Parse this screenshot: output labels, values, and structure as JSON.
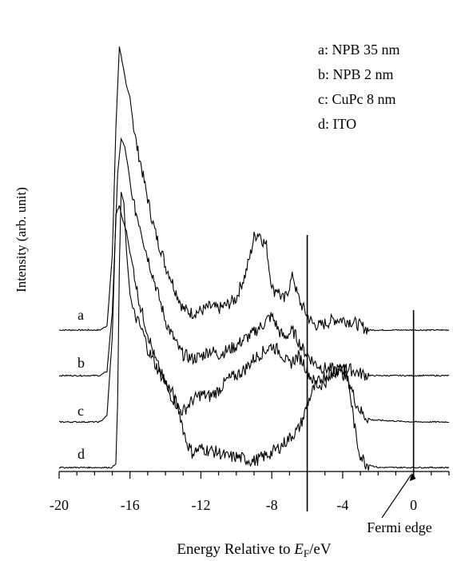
{
  "chart_data": {
    "type": "line",
    "xlabel_prefix": "Energy Relative to ",
    "xlabel_var": "E",
    "xlabel_sub": "F",
    "xlabel_suffix": "/eV",
    "ylabel": "Intensity (arb. unit)",
    "xlim": [
      -20,
      2
    ],
    "x_ticks": [
      -20,
      -16,
      -12,
      -8,
      -4,
      0
    ],
    "x_tick_labels": [
      "-20",
      "-16",
      "-12",
      "-8",
      "-4",
      "0"
    ],
    "grid": false,
    "legend_position": "top-right",
    "legend": [
      "a: NPB 35 nm",
      "b: NPB 2 nm",
      "c: CuPc 8 nm",
      "d: ITO"
    ],
    "annotations": [
      {
        "text": "Fermi edge",
        "x": 0
      }
    ],
    "vertical_lines": [
      -6,
      0
    ],
    "series": [
      {
        "name": "a",
        "points": [
          [
            -20,
            0.0
          ],
          [
            -17.7,
            0.0
          ],
          [
            -17.3,
            0.02
          ],
          [
            -17.0,
            0.35
          ],
          [
            -16.8,
            0.95
          ],
          [
            -16.6,
            1.34
          ],
          [
            -16.4,
            1.25
          ],
          [
            -16.2,
            1.15
          ],
          [
            -16.0,
            1.1
          ],
          [
            -15.8,
            0.96
          ],
          [
            -15.6,
            0.86
          ],
          [
            -15.4,
            0.79
          ],
          [
            -15.2,
            0.7
          ],
          [
            -15.0,
            0.62
          ],
          [
            -14.8,
            0.54
          ],
          [
            -14.6,
            0.47
          ],
          [
            -14.4,
            0.41
          ],
          [
            -14.2,
            0.37
          ],
          [
            -14.0,
            0.3
          ],
          [
            -13.8,
            0.27
          ],
          [
            -13.5,
            0.2
          ],
          [
            -13.2,
            0.14
          ],
          [
            -13.0,
            0.1
          ],
          [
            -12.5,
            0.08
          ],
          [
            -12.0,
            0.09
          ],
          [
            -11.5,
            0.11
          ],
          [
            -11.0,
            0.1
          ],
          [
            -10.5,
            0.12
          ],
          [
            -10.0,
            0.15
          ],
          [
            -9.8,
            0.2
          ],
          [
            -9.5,
            0.26
          ],
          [
            -9.2,
            0.36
          ],
          [
            -9.0,
            0.44
          ],
          [
            -8.7,
            0.46
          ],
          [
            -8.5,
            0.42
          ],
          [
            -8.3,
            0.4
          ],
          [
            -8.1,
            0.26
          ],
          [
            -7.9,
            0.18
          ],
          [
            -7.7,
            0.2
          ],
          [
            -7.5,
            0.16
          ],
          [
            -7.3,
            0.14
          ],
          [
            -7.0,
            0.21
          ],
          [
            -6.8,
            0.26
          ],
          [
            -6.6,
            0.18
          ],
          [
            -6.4,
            0.13
          ],
          [
            -6.2,
            0.1
          ],
          [
            -6.0,
            0.07
          ],
          [
            -5.7,
            0.03
          ],
          [
            -5.3,
            0.02
          ],
          [
            -5.0,
            0.03
          ],
          [
            -4.5,
            0.05
          ],
          [
            -4.0,
            0.05
          ],
          [
            -3.5,
            0.04
          ],
          [
            -3.0,
            0.02
          ],
          [
            -2.5,
            0.0
          ],
          [
            0,
            0.0
          ],
          [
            2,
            0.0
          ]
        ]
      },
      {
        "name": "b",
        "points": [
          [
            -20,
            0.0
          ],
          [
            -17.7,
            0.0
          ],
          [
            -17.3,
            0.02
          ],
          [
            -17.0,
            0.3
          ],
          [
            -16.7,
            0.95
          ],
          [
            -16.5,
            1.12
          ],
          [
            -16.3,
            1.08
          ],
          [
            -16.1,
            0.98
          ],
          [
            -15.9,
            0.85
          ],
          [
            -15.7,
            0.78
          ],
          [
            -15.4,
            0.7
          ],
          [
            -15.2,
            0.62
          ],
          [
            -15.0,
            0.56
          ],
          [
            -14.8,
            0.5
          ],
          [
            -14.6,
            0.44
          ],
          [
            -14.4,
            0.38
          ],
          [
            -14.2,
            0.32
          ],
          [
            -14.0,
            0.26
          ],
          [
            -13.8,
            0.22
          ],
          [
            -13.5,
            0.17
          ],
          [
            -13.2,
            0.12
          ],
          [
            -13.0,
            0.1
          ],
          [
            -12.5,
            0.08
          ],
          [
            -12.0,
            0.09
          ],
          [
            -11.5,
            0.12
          ],
          [
            -11.0,
            0.1
          ],
          [
            -10.5,
            0.12
          ],
          [
            -10.0,
            0.14
          ],
          [
            -9.6,
            0.17
          ],
          [
            -9.2,
            0.19
          ],
          [
            -8.8,
            0.22
          ],
          [
            -8.5,
            0.24
          ],
          [
            -8.2,
            0.27
          ],
          [
            -8.0,
            0.28
          ],
          [
            -7.8,
            0.25
          ],
          [
            -7.6,
            0.21
          ],
          [
            -7.3,
            0.18
          ],
          [
            -7.0,
            0.2
          ],
          [
            -6.8,
            0.21
          ],
          [
            -6.6,
            0.18
          ],
          [
            -6.3,
            0.13
          ],
          [
            -6.0,
            0.1
          ],
          [
            -5.6,
            0.06
          ],
          [
            -5.2,
            0.04
          ],
          [
            -4.8,
            0.03
          ],
          [
            -4.4,
            0.03
          ],
          [
            -4.0,
            0.03
          ],
          [
            -3.6,
            0.03
          ],
          [
            -3.0,
            0.01
          ],
          [
            -2.5,
            0.0
          ],
          [
            0,
            0.0
          ],
          [
            2,
            0.0
          ]
        ]
      },
      {
        "name": "c",
        "points": [
          [
            -20,
            0.0
          ],
          [
            -17.7,
            0.0
          ],
          [
            -17.3,
            0.03
          ],
          [
            -17.0,
            0.4
          ],
          [
            -16.8,
            0.98
          ],
          [
            -16.6,
            1.02
          ],
          [
            -16.4,
            0.95
          ],
          [
            -16.2,
            0.9
          ],
          [
            -16.0,
            0.8
          ],
          [
            -15.8,
            0.72
          ],
          [
            -15.6,
            0.62
          ],
          [
            -15.4,
            0.54
          ],
          [
            -15.2,
            0.48
          ],
          [
            -15.0,
            0.42
          ],
          [
            -14.8,
            0.36
          ],
          [
            -14.6,
            0.3
          ],
          [
            -14.4,
            0.26
          ],
          [
            -14.2,
            0.22
          ],
          [
            -14.0,
            0.18
          ],
          [
            -13.8,
            0.14
          ],
          [
            -13.5,
            0.1
          ],
          [
            -13.2,
            0.06
          ],
          [
            -13.0,
            0.05
          ],
          [
            -12.5,
            0.1
          ],
          [
            -12.0,
            0.13
          ],
          [
            -11.5,
            0.12
          ],
          [
            -11.0,
            0.15
          ],
          [
            -10.5,
            0.2
          ],
          [
            -10.0,
            0.22
          ],
          [
            -9.5,
            0.25
          ],
          [
            -9.0,
            0.3
          ],
          [
            -8.5,
            0.33
          ],
          [
            -8.0,
            0.36
          ],
          [
            -7.5,
            0.33
          ],
          [
            -7.2,
            0.29
          ],
          [
            -7.0,
            0.27
          ],
          [
            -6.8,
            0.29
          ],
          [
            -6.5,
            0.31
          ],
          [
            -6.2,
            0.28
          ],
          [
            -6.0,
            0.24
          ],
          [
            -5.7,
            0.2
          ],
          [
            -5.4,
            0.17
          ],
          [
            -5.1,
            0.18
          ],
          [
            -4.8,
            0.2
          ],
          [
            -4.5,
            0.22
          ],
          [
            -4.2,
            0.26
          ],
          [
            -4.0,
            0.23
          ],
          [
            -3.6,
            0.18
          ],
          [
            -3.2,
            0.08
          ],
          [
            -2.8,
            0.03
          ],
          [
            -2.4,
            0.01
          ],
          [
            0,
            0.0
          ],
          [
            2,
            0.0
          ]
        ]
      },
      {
        "name": "d",
        "points": [
          [
            -20,
            0.0
          ],
          [
            -17.0,
            0.0
          ],
          [
            -16.8,
            0.02
          ],
          [
            -16.7,
            0.3
          ],
          [
            -16.6,
            0.95
          ],
          [
            -16.5,
            1.3
          ],
          [
            -16.35,
            1.25
          ],
          [
            -16.2,
            1.02
          ],
          [
            -16.0,
            0.82
          ],
          [
            -15.8,
            0.73
          ],
          [
            -15.5,
            0.68
          ],
          [
            -15.2,
            0.62
          ],
          [
            -15.0,
            0.56
          ],
          [
            -14.6,
            0.49
          ],
          [
            -14.2,
            0.43
          ],
          [
            -14.0,
            0.4
          ],
          [
            -13.6,
            0.35
          ],
          [
            -13.2,
            0.26
          ],
          [
            -13.0,
            0.18
          ],
          [
            -12.8,
            0.12
          ],
          [
            -12.5,
            0.07
          ],
          [
            -12.0,
            0.09
          ],
          [
            -11.5,
            0.08
          ],
          [
            -11.0,
            0.07
          ],
          [
            -10.5,
            0.05
          ],
          [
            -10.0,
            0.05
          ],
          [
            -9.5,
            0.04
          ],
          [
            -9.0,
            0.03
          ],
          [
            -8.5,
            0.05
          ],
          [
            -8.0,
            0.07
          ],
          [
            -7.5,
            0.1
          ],
          [
            -7.0,
            0.14
          ],
          [
            -6.5,
            0.18
          ],
          [
            -6.2,
            0.24
          ],
          [
            -6.0,
            0.3
          ],
          [
            -5.7,
            0.36
          ],
          [
            -5.4,
            0.4
          ],
          [
            -5.1,
            0.43
          ],
          [
            -4.8,
            0.44
          ],
          [
            -4.5,
            0.46
          ],
          [
            -4.2,
            0.46
          ],
          [
            -4.0,
            0.48
          ],
          [
            -3.8,
            0.46
          ],
          [
            -3.6,
            0.36
          ],
          [
            -3.4,
            0.24
          ],
          [
            -3.2,
            0.12
          ],
          [
            -3.0,
            0.06
          ],
          [
            -2.7,
            0.02
          ],
          [
            -2.4,
            0.01
          ],
          [
            -2.0,
            0.0
          ],
          [
            0,
            0.0
          ],
          [
            2,
            0.0
          ]
        ]
      }
    ]
  }
}
